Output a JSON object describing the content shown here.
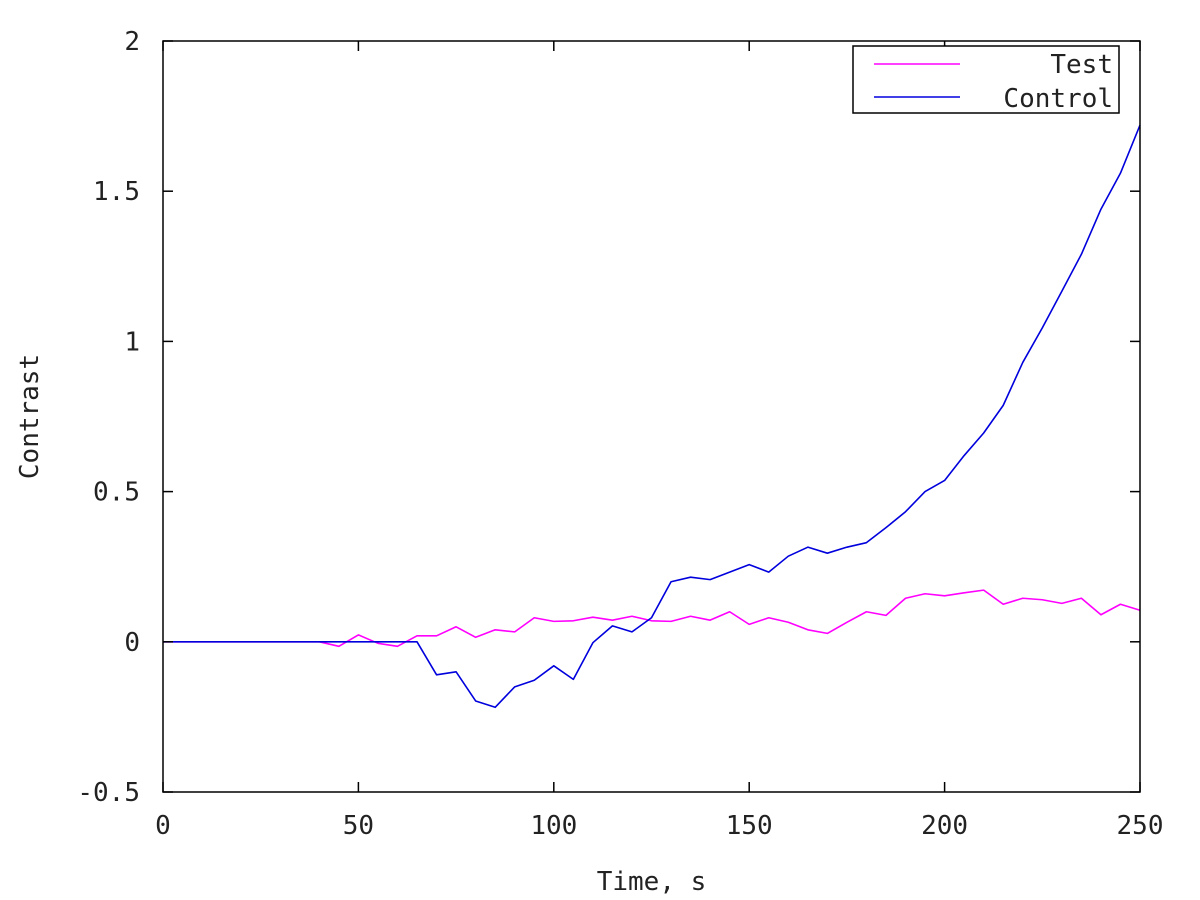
{
  "chart_data": {
    "type": "line",
    "title": "",
    "xlabel": "Time, s",
    "ylabel": "Contrast",
    "xlim": [
      0,
      250
    ],
    "ylim": [
      -0.5,
      2
    ],
    "xticks": [
      0,
      50,
      100,
      150,
      200,
      250
    ],
    "yticks": [
      -0.5,
      0,
      0.5,
      1,
      1.5,
      2
    ],
    "ytick_labels": [
      "-0.5",
      "0",
      "0.5",
      "1",
      "1.5",
      "2"
    ],
    "grid": false,
    "legend_position": "top-right",
    "series": [
      {
        "name": "Test",
        "color": "#ff00ff",
        "x": [
          0,
          5,
          10,
          15,
          20,
          25,
          30,
          35,
          40,
          45,
          50,
          55,
          60,
          65,
          70,
          75,
          80,
          85,
          90,
          95,
          100,
          105,
          110,
          115,
          120,
          125,
          130,
          135,
          140,
          145,
          150,
          155,
          160,
          165,
          170,
          175,
          180,
          185,
          190,
          195,
          200,
          205,
          210,
          215,
          220,
          225,
          230,
          235,
          240,
          245,
          250
        ],
        "y": [
          0,
          0,
          0,
          0,
          0,
          0,
          0,
          0,
          0,
          -0.015,
          0.023,
          -0.005,
          -0.015,
          0.02,
          0.02,
          0.05,
          0.015,
          0.04,
          0.033,
          0.08,
          0.068,
          0.07,
          0.082,
          0.072,
          0.085,
          0.07,
          0.068,
          0.085,
          0.072,
          0.1,
          0.058,
          0.08,
          0.065,
          0.04,
          0.028,
          0.065,
          0.1,
          0.088,
          0.145,
          0.16,
          0.153,
          0.163,
          0.172,
          0.125,
          0.145,
          0.14,
          0.128,
          0.145,
          0.09,
          0.125,
          0.105
        ]
      },
      {
        "name": "Control",
        "color": "#0000dd",
        "x": [
          0,
          5,
          10,
          15,
          20,
          25,
          30,
          35,
          40,
          45,
          50,
          55,
          60,
          65,
          70,
          75,
          80,
          85,
          90,
          95,
          100,
          105,
          110,
          115,
          120,
          125,
          130,
          135,
          140,
          145,
          150,
          155,
          160,
          165,
          170,
          175,
          180,
          185,
          190,
          195,
          200,
          205,
          210,
          215,
          220,
          225,
          230,
          235,
          240,
          245,
          250
        ],
        "y": [
          0,
          0,
          0,
          0,
          0,
          0,
          0,
          0,
          0,
          0,
          0,
          0,
          0,
          0,
          -0.11,
          -0.1,
          -0.197,
          -0.218,
          -0.15,
          -0.128,
          -0.08,
          -0.125,
          -0.003,
          0.053,
          0.033,
          0.08,
          0.2,
          0.215,
          0.207,
          0.232,
          0.257,
          0.232,
          0.285,
          0.315,
          0.295,
          0.315,
          0.33,
          0.38,
          0.433,
          0.5,
          0.537,
          0.62,
          0.695,
          0.787,
          0.93,
          1.045,
          1.167,
          1.29,
          1.44,
          1.56,
          1.72
        ]
      }
    ]
  }
}
